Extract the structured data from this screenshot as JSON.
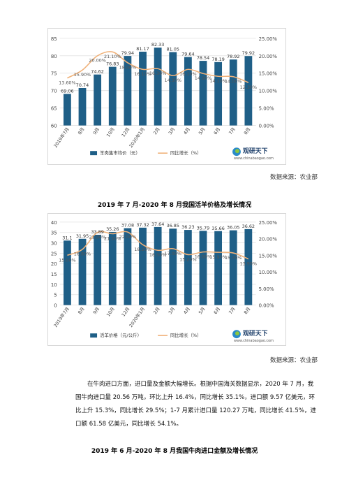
{
  "colors": {
    "bar": "#1f5f87",
    "line": "#f0b27a",
    "text": "#222222"
  },
  "charts": [
    {
      "chart_data": {
        "type": "bar",
        "categories": [
          "2019年7月",
          "8月",
          "9月",
          "10月",
          "12月",
          "2020年1月",
          "2月",
          "3月",
          "4月",
          "5月",
          "6月",
          "7月",
          "8月"
        ],
        "series": [
          {
            "name": "羊肉集市均价（元）",
            "type": "bar",
            "axis": "left",
            "values": [
              69.06,
              70.74,
              74.62,
              76.83,
              79.94,
              81.17,
              82.33,
              81.05,
              79.64,
              78.54,
              78.19,
              78.92,
              79.92
            ]
          },
          {
            "name": "同比增长（%）",
            "type": "line",
            "axis": "right",
            "values": [
              13.6,
              15.9,
              20.0,
              21.1,
              18.0,
              16.1,
              16.3,
              14.3,
              16.1,
              14.9,
              14.1,
              14.0,
              12.3
            ],
            "labels": [
              "13.60%",
              "15.90%",
              "20.00%",
              "21.10%",
              "18.00%",
              "16.10%",
              "16.30%",
              "14.30%",
              "16.10%",
              "14.90%",
              "14.10%",
              "14.00%",
              "12.30%"
            ]
          }
        ],
        "ylim_left": [
          60,
          85
        ],
        "yticks_left": [
          "60",
          "65",
          "70",
          "75",
          "80",
          "85"
        ],
        "ylim_right": [
          0,
          25
        ],
        "yticks_right": [
          "0.00%",
          "5.00%",
          "10.00%",
          "15.00%",
          "20.00%",
          "25.00%"
        ],
        "grid": true,
        "legend": "bottom"
      },
      "logo_text": "观研天下",
      "logo_url": "www.chinabaogao.com",
      "source": "数据来源：农业部",
      "caption": "2019 年 7 月-2020 年 8 月我国活羊价格及增长情况"
    },
    {
      "chart_data": {
        "type": "bar",
        "categories": [
          "2019年7月",
          "8月",
          "9月",
          "10月",
          "12月",
          "2020年1月",
          "2月",
          "3月",
          "4月",
          "5月",
          "6月",
          "7月",
          "8月"
        ],
        "series": [
          {
            "name": "活羊价格（元/公斤）",
            "type": "bar",
            "axis": "left",
            "values": [
              31.1,
              31.95,
              33.89,
              35.26,
              37.08,
              37.32,
              37.64,
              36.85,
              36.23,
              35.79,
              35.66,
              36.05,
              36.62
            ]
          },
          {
            "name": "同比增长（%）",
            "type": "line",
            "axis": "right",
            "values": [
              15.0,
              16.8,
              21.9,
              21.5,
              22.0,
              18.2,
              16.5,
              17.0,
              15.2,
              16.0,
              15.9,
              15.7,
              13.9
            ],
            "labels": [
              "15.00%",
              "16.80%",
              "21.90%",
              "21.50%",
              "22.00%",
              "18.20%",
              "16.50%",
              "17.00%",
              "15.20%",
              "16.00%",
              "15.90%",
              "15.70%",
              "13.90%"
            ]
          }
        ],
        "ylim_left": [
          0,
          40
        ],
        "yticks_left": [
          "0",
          "5",
          "10",
          "15",
          "20",
          "25",
          "30",
          "35",
          "40"
        ],
        "ylim_right": [
          0,
          25
        ],
        "yticks_right": [
          "0.00%",
          "5.00%",
          "10.00%",
          "15.00%",
          "20.00%",
          "25.00%"
        ],
        "grid": true,
        "legend": "bottom"
      },
      "logo_text": "观研天下",
      "logo_url": "www.chinabaogao.com",
      "source": "数据来源：农业部"
    }
  ],
  "paragraph": "在牛肉进口方面，进口量及金额大幅增长。根据中国海关数据显示，2020 年 7 月，我国牛肉进口量 20.56 万吨，环比上升 16.4%，同比增长 35.1%，进口额 9.57 亿美元，环比上升 15.3%，同比增长 29.5%；1-7 月累计进口量 120.27 万吨，同比增长 41.5%，进口额 61.58 亿美元，同比增长 54.1%。",
  "final_caption": "2019 年 6 月-2020 年 8 月我国牛肉进口金额及增长情况"
}
